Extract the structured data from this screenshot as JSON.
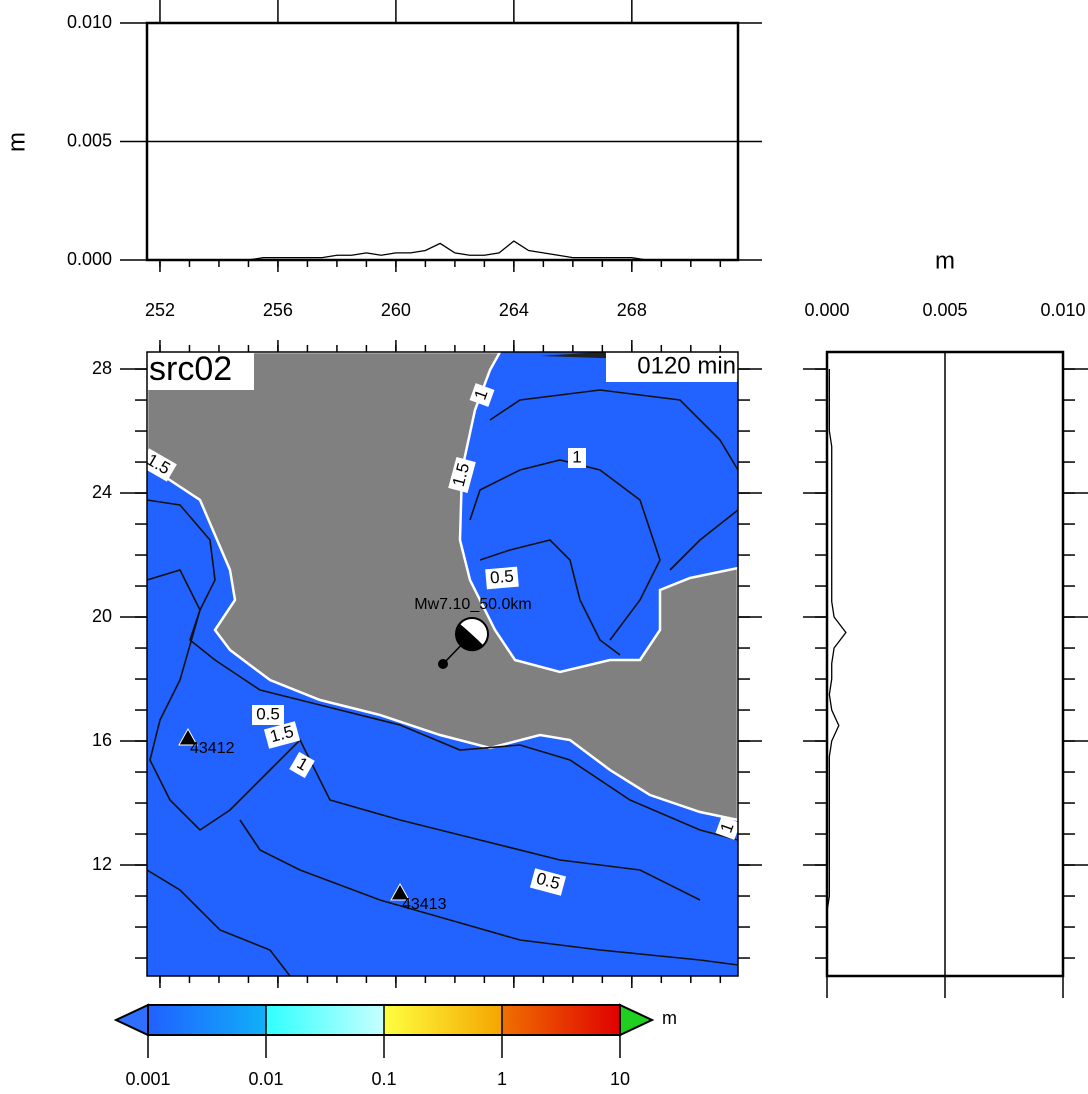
{
  "top_panel": {
    "ylabel": "m",
    "ylim": [
      0,
      0.01
    ],
    "yticks": [
      {
        "value": 0,
        "label": "0.000"
      },
      0.005,
      {
        "value": 0.01,
        "label": "0.010"
      }
    ],
    "grid": true,
    "lon": [
      252,
      252.5,
      253,
      253.5,
      254,
      254.5,
      255,
      255.5,
      256,
      256.5,
      257,
      257.5,
      258,
      258.5,
      259,
      259.5,
      260,
      260.5,
      261,
      261.5,
      262,
      262.5,
      263,
      263.5,
      264,
      264.5,
      265,
      265.5,
      266,
      266.5,
      267,
      267.5,
      268,
      268.5,
      269,
      269.5,
      270,
      270.5,
      271
    ],
    "values": [
      0,
      0,
      0,
      0,
      0,
      0,
      0,
      0.0001,
      0.0001,
      0.0001,
      0.0001,
      0.0001,
      0.0002,
      0.0002,
      0.0003,
      0.0002,
      0.0003,
      0.0003,
      0.0004,
      0.0007,
      0.0003,
      0.0002,
      0.0002,
      0.0003,
      0.0008,
      0.0004,
      0.0003,
      0.0002,
      0.0001,
      0.0001,
      0.0001,
      0.0001,
      0.0001,
      0,
      0,
      0,
      0,
      0,
      0
    ]
  },
  "right_panel": {
    "xlabel": "m",
    "xlim": [
      0,
      0.01
    ],
    "xticks": [
      {
        "value": 0,
        "label": "0.000"
      },
      0.005,
      {
        "value": 0.01,
        "label": "0.010"
      }
    ],
    "grid": true,
    "lat": [
      9,
      9.5,
      10,
      10.5,
      11,
      11.5,
      12,
      12.5,
      13,
      13.5,
      14,
      14.5,
      15,
      15.5,
      16,
      16.5,
      17,
      17.5,
      18,
      18.5,
      19,
      19.5,
      20,
      20.5,
      21,
      21.5,
      22,
      22.5,
      23,
      23.5,
      24,
      24.5,
      25,
      25.5,
      26,
      26.5,
      27,
      27.5,
      28
    ],
    "values": [
      0,
      0,
      0,
      0,
      0.0001,
      0.0001,
      0.0001,
      0.0001,
      0.0001,
      0.0001,
      0.0001,
      0.0001,
      0.0001,
      0.0001,
      0.0002,
      0.0005,
      0.0002,
      0.0001,
      0.0002,
      0.0002,
      0.0003,
      0.0008,
      0.0003,
      0.0002,
      0.0002,
      0.0002,
      0.0002,
      0.0002,
      0.0002,
      0.0002,
      0.0002,
      0.0002,
      0.0002,
      0.0002,
      0.0001,
      0.0001,
      0.0001,
      0.0001,
      0.0001
    ]
  },
  "map": {
    "title": "src02",
    "time": "0120 min",
    "event": "Mw7.10_50.0km",
    "xlim": [
      251.56,
      271.6
    ],
    "ylim": [
      8.42,
      28.55
    ],
    "xticks": [
      252,
      256,
      260,
      264,
      268
    ],
    "yticks": [
      12,
      16,
      20,
      24,
      28
    ],
    "stations": [
      "43412",
      "43413"
    ],
    "contour_labels": [
      "1",
      "1.5",
      "1",
      "0.5",
      "1.5",
      "0.5",
      "1.5",
      "1",
      "0.5",
      "1"
    ]
  },
  "colorbar": {
    "unit": "m",
    "log": true,
    "lim": [
      0.001,
      10
    ],
    "ticks": [
      0.001,
      0.01,
      0.1,
      1,
      10
    ],
    "colors": [
      [
        "#2060ff",
        "#10b0f8"
      ],
      [
        "#30ffff",
        "#c8ffff"
      ],
      [
        "#ffff40",
        "#f5a500"
      ],
      [
        "#f07000",
        "#e00000"
      ]
    ],
    "under": "#2f6fff",
    "over": "#20d020"
  }
}
